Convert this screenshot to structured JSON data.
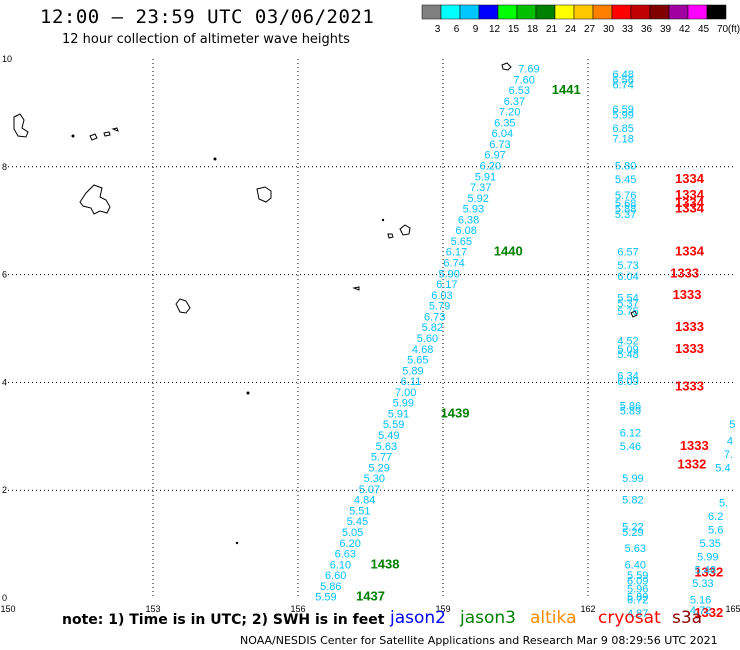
{
  "header": {
    "title": "12:00 – 23:59 UTC 03/06/2021",
    "subtitle": "12 hour collection of altimeter wave heights"
  },
  "legend": {
    "unit": "(ft)",
    "bins": [
      {
        "label": "3",
        "color": "#808080"
      },
      {
        "label": "6",
        "color": "#00ffff"
      },
      {
        "label": "9",
        "color": "#00c8ff"
      },
      {
        "label": "12",
        "color": "#0000ff"
      },
      {
        "label": "15",
        "color": "#00ff00"
      },
      {
        "label": "18",
        "color": "#00c000"
      },
      {
        "label": "21",
        "color": "#008000"
      },
      {
        "label": "24",
        "color": "#ffff00"
      },
      {
        "label": "27",
        "color": "#ffc800"
      },
      {
        "label": "30",
        "color": "#ff8000"
      },
      {
        "label": "33",
        "color": "#ff0000"
      },
      {
        "label": "36",
        "color": "#c00000"
      },
      {
        "label": "39",
        "color": "#800000"
      },
      {
        "label": "42",
        "color": "#a000a0"
      },
      {
        "label": "45",
        "color": "#ff00ff"
      },
      {
        "label": "70",
        "color": "#000000"
      }
    ]
  },
  "footer": {
    "note": "note:  1) Time is in UTC;  2) SWH is in feet",
    "satellites": [
      {
        "name": "jason2",
        "color": "#0000ff"
      },
      {
        "name": "jason3",
        "color": "#008000"
      },
      {
        "name": "altika",
        "color": "#ff8c00"
      },
      {
        "name": "cryosat",
        "color": "#ff0000"
      },
      {
        "name": "s3a",
        "color": "#8b0000"
      }
    ],
    "credit": "NOAA/NESDIS Center for Satellite Applications and Research    Mar  9 08:29:56 UTC 2021"
  },
  "chart_data": {
    "type": "scatter",
    "xlim": [
      150,
      165
    ],
    "ylim": [
      0,
      10
    ],
    "x_ticks": [
      "150",
      "153",
      "156",
      "159",
      "162",
      "165"
    ],
    "y_ticks": [
      "0",
      "2",
      "4",
      "6",
      "8",
      "10"
    ],
    "grid": true,
    "value_color": "#00bfff",
    "time_color_green": "#008000",
    "time_color_red": "#ff0000",
    "series": [
      {
        "track": "jason3",
        "points": [
          {
            "x": 161.0,
            "y": 9.75,
            "v": "7.69"
          },
          {
            "x": 160.9,
            "y": 9.55,
            "v": "7.60"
          },
          {
            "x": 160.8,
            "y": 9.35,
            "v": "6.53"
          },
          {
            "x": 160.7,
            "y": 9.15,
            "v": "6.37"
          },
          {
            "x": 160.6,
            "y": 8.95,
            "v": "7.20"
          },
          {
            "x": 160.5,
            "y": 8.75,
            "v": "6.35"
          },
          {
            "x": 160.45,
            "y": 8.55,
            "v": "6.04"
          },
          {
            "x": 160.4,
            "y": 8.35,
            "v": "6.73"
          },
          {
            "x": 160.3,
            "y": 8.15,
            "v": "6.97"
          },
          {
            "x": 160.2,
            "y": 7.95,
            "v": "6.20"
          },
          {
            "x": 160.1,
            "y": 7.75,
            "v": "5.91"
          },
          {
            "x": 160.0,
            "y": 7.55,
            "v": "7.37"
          },
          {
            "x": 159.95,
            "y": 7.35,
            "v": "5.92"
          },
          {
            "x": 159.85,
            "y": 7.15,
            "v": "5.93"
          },
          {
            "x": 159.75,
            "y": 6.95,
            "v": "6.38"
          },
          {
            "x": 159.7,
            "y": 6.75,
            "v": "6.08"
          },
          {
            "x": 159.6,
            "y": 6.55,
            "v": "5.65"
          },
          {
            "x": 159.5,
            "y": 6.35,
            "v": "6.17"
          },
          {
            "x": 159.45,
            "y": 6.15,
            "v": "6.74"
          },
          {
            "x": 159.35,
            "y": 5.95,
            "v": "5.90"
          },
          {
            "x": 159.3,
            "y": 5.75,
            "v": "6.17"
          },
          {
            "x": 159.2,
            "y": 5.55,
            "v": "6.03"
          },
          {
            "x": 159.15,
            "y": 5.35,
            "v": "5.79"
          },
          {
            "x": 159.05,
            "y": 5.15,
            "v": "6.73"
          },
          {
            "x": 159.0,
            "y": 4.95,
            "v": "5.82"
          },
          {
            "x": 158.9,
            "y": 4.75,
            "v": "5.60"
          },
          {
            "x": 158.8,
            "y": 4.55,
            "v": "4.68"
          },
          {
            "x": 158.7,
            "y": 4.35,
            "v": "5.65"
          },
          {
            "x": 158.6,
            "y": 4.15,
            "v": "5.89"
          },
          {
            "x": 158.55,
            "y": 3.95,
            "v": "6.11"
          },
          {
            "x": 158.45,
            "y": 3.75,
            "v": "7.00"
          },
          {
            "x": 158.4,
            "y": 3.55,
            "v": "5.99"
          },
          {
            "x": 158.3,
            "y": 3.35,
            "v": "5.91"
          },
          {
            "x": 158.2,
            "y": 3.15,
            "v": "5.59"
          },
          {
            "x": 158.1,
            "y": 2.95,
            "v": "5.49"
          },
          {
            "x": 158.05,
            "y": 2.75,
            "v": "5.63"
          },
          {
            "x": 157.95,
            "y": 2.55,
            "v": "5.77"
          },
          {
            "x": 157.9,
            "y": 2.35,
            "v": "5.29"
          },
          {
            "x": 157.8,
            "y": 2.15,
            "v": "5.30"
          },
          {
            "x": 157.7,
            "y": 1.95,
            "v": "5.07"
          },
          {
            "x": 157.6,
            "y": 1.75,
            "v": "4.84"
          },
          {
            "x": 157.5,
            "y": 1.55,
            "v": "5.51"
          },
          {
            "x": 157.45,
            "y": 1.35,
            "v": "5.45"
          },
          {
            "x": 157.35,
            "y": 1.15,
            "v": "5.05"
          },
          {
            "x": 157.3,
            "y": 0.95,
            "v": "6.20"
          },
          {
            "x": 157.2,
            "y": 0.75,
            "v": "6.63"
          },
          {
            "x": 157.1,
            "y": 0.55,
            "v": "6.10"
          },
          {
            "x": 157.0,
            "y": 0.35,
            "v": "6.60"
          },
          {
            "x": 156.9,
            "y": 0.15,
            "v": "5.86"
          },
          {
            "x": 156.8,
            "y": -0.05,
            "v": "5.59"
          }
        ],
        "times": [
          {
            "x": 161.25,
            "y": 9.35,
            "t": "1441"
          },
          {
            "x": 160.05,
            "y": 6.35,
            "t": "1440"
          },
          {
            "x": 158.95,
            "y": 3.35,
            "t": "1439"
          },
          {
            "x": 157.5,
            "y": 0.55,
            "t": "1438"
          },
          {
            "x": 157.2,
            "y": -0.05,
            "t": "1437"
          }
        ]
      },
      {
        "track": "cryosat",
        "points": [
          {
            "x": 162.95,
            "y": 9.65,
            "v": "6.48"
          },
          {
            "x": 162.95,
            "y": 9.55,
            "v": "6.56"
          },
          {
            "x": 162.95,
            "y": 9.45,
            "v": "6.74"
          },
          {
            "x": 162.95,
            "y": 9.0,
            "v": "6.59"
          },
          {
            "x": 162.95,
            "y": 8.9,
            "v": "5.99"
          },
          {
            "x": 162.95,
            "y": 8.65,
            "v": "6.85"
          },
          {
            "x": 162.95,
            "y": 8.45,
            "v": "7.18"
          },
          {
            "x": 163.0,
            "y": 7.95,
            "v": "5.80"
          },
          {
            "x": 163.0,
            "y": 7.7,
            "v": "5.45"
          },
          {
            "x": 163.0,
            "y": 7.4,
            "v": "5.76"
          },
          {
            "x": 163.0,
            "y": 7.25,
            "v": "5.68"
          },
          {
            "x": 163.0,
            "y": 7.15,
            "v": "5.88"
          },
          {
            "x": 163.0,
            "y": 7.05,
            "v": "5.37"
          },
          {
            "x": 163.05,
            "y": 6.35,
            "v": "6.57"
          },
          {
            "x": 163.05,
            "y": 6.1,
            "v": "5.73"
          },
          {
            "x": 163.05,
            "y": 5.9,
            "v": "6.04"
          },
          {
            "x": 163.05,
            "y": 5.5,
            "v": "5.54"
          },
          {
            "x": 163.05,
            "y": 5.4,
            "v": "5.37"
          },
          {
            "x": 163.05,
            "y": 5.25,
            "v": "5.75"
          },
          {
            "x": 163.05,
            "y": 4.7,
            "v": "4.52"
          },
          {
            "x": 163.05,
            "y": 4.55,
            "v": "5.09"
          },
          {
            "x": 163.05,
            "y": 4.45,
            "v": "5.48"
          },
          {
            "x": 163.05,
            "y": 4.05,
            "v": "6.34"
          },
          {
            "x": 163.05,
            "y": 3.95,
            "v": "6.09"
          },
          {
            "x": 163.1,
            "y": 3.5,
            "v": "5.86"
          },
          {
            "x": 163.1,
            "y": 3.4,
            "v": "5.89"
          },
          {
            "x": 163.1,
            "y": 3.0,
            "v": "6.12"
          },
          {
            "x": 163.1,
            "y": 2.75,
            "v": "5.46"
          },
          {
            "x": 163.15,
            "y": 2.15,
            "v": "5.99"
          },
          {
            "x": 163.15,
            "y": 1.75,
            "v": "5.82"
          },
          {
            "x": 163.15,
            "y": 1.25,
            "v": "5.22"
          },
          {
            "x": 163.15,
            "y": 1.15,
            "v": "5.29"
          },
          {
            "x": 163.2,
            "y": 0.85,
            "v": "5.63"
          },
          {
            "x": 163.2,
            "y": 0.55,
            "v": "6.40"
          },
          {
            "x": 163.25,
            "y": 0.35,
            "v": "5.59"
          },
          {
            "x": 163.25,
            "y": 0.25,
            "v": "6.09"
          },
          {
            "x": 163.25,
            "y": 0.1,
            "v": "5.96"
          },
          {
            "x": 163.25,
            "y": -0.05,
            "v": "5.89"
          },
          {
            "x": 163.25,
            "y": -0.1,
            "v": "6.72"
          },
          {
            "x": 163.25,
            "y": -0.35,
            "v": "4.87"
          }
        ],
        "times": [
          {
            "x": 163.8,
            "y": 7.7,
            "t": "1334"
          },
          {
            "x": 163.8,
            "y": 7.4,
            "t": "1334"
          },
          {
            "x": 163.8,
            "y": 7.25,
            "t": "1334"
          },
          {
            "x": 163.8,
            "y": 7.15,
            "t": "1334"
          },
          {
            "x": 163.8,
            "y": 6.35,
            "t": "1334"
          },
          {
            "x": 163.7,
            "y": 5.95,
            "t": "1333"
          },
          {
            "x": 163.75,
            "y": 5.55,
            "t": "1333"
          },
          {
            "x": 163.8,
            "y": 4.95,
            "t": "1333"
          },
          {
            "x": 163.8,
            "y": 4.55,
            "t": "1333"
          },
          {
            "x": 163.8,
            "y": 3.85,
            "t": "1333"
          },
          {
            "x": 163.9,
            "y": 2.75,
            "t": "1333"
          },
          {
            "x": 163.85,
            "y": 2.4,
            "t": "1332"
          },
          {
            "x": 164.2,
            "y": 0.4,
            "t": "1332"
          },
          {
            "x": 164.2,
            "y": -0.35,
            "t": "1332"
          }
        ]
      },
      {
        "track": "s3a",
        "points": [
          {
            "x": 165.05,
            "y": 3.15,
            "v": "5"
          },
          {
            "x": 165.0,
            "y": 2.85,
            "v": "4"
          },
          {
            "x": 165.0,
            "y": 2.6,
            "v": "7."
          },
          {
            "x": 164.95,
            "y": 2.35,
            "v": "5.4"
          },
          {
            "x": 164.9,
            "y": 1.7,
            "v": "5."
          },
          {
            "x": 164.8,
            "y": 1.45,
            "v": "6.2"
          },
          {
            "x": 164.8,
            "y": 1.2,
            "v": "5.6"
          },
          {
            "x": 164.75,
            "y": 0.95,
            "v": "5.35"
          },
          {
            "x": 164.7,
            "y": 0.7,
            "v": "5.99"
          },
          {
            "x": 164.65,
            "y": 0.45,
            "v": "5.48"
          },
          {
            "x": 164.6,
            "y": 0.2,
            "v": "5.33"
          },
          {
            "x": 164.55,
            "y": -0.1,
            "v": "5.16"
          },
          {
            "x": 164.55,
            "y": -0.3,
            "v": "4.72"
          }
        ],
        "times": []
      }
    ]
  }
}
